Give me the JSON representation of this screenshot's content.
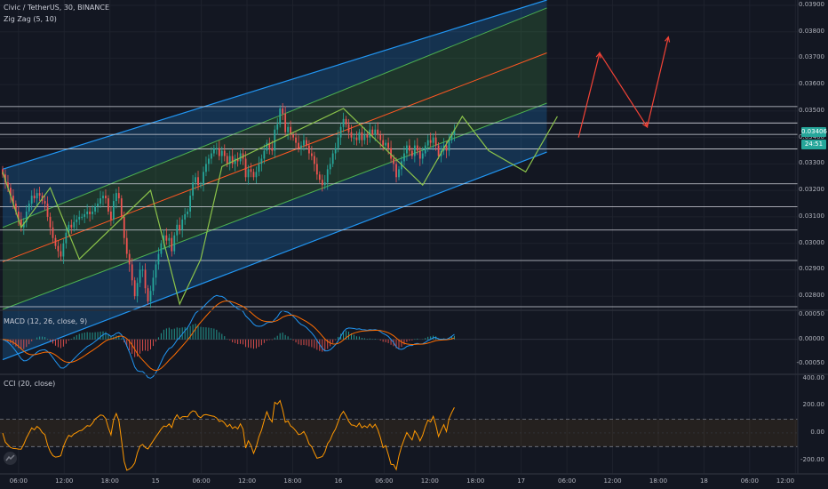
{
  "header": {
    "symbol_title": "Civic / TetherUS, 30, BINANCE",
    "indicator_1": "Zig Zag (5, 10)"
  },
  "panels": {
    "macd_label": "MACD (12, 26, close, 9)",
    "cci_label": "CCI (20, close)"
  },
  "price_axis": {
    "ticks": [
      "0.03900",
      "0.03800",
      "0.03700",
      "0.03600",
      "0.03500",
      "0.03400",
      "0.03300",
      "0.03200",
      "0.03100",
      "0.03000",
      "0.02900",
      "0.02800"
    ],
    "last_price": "0.03406",
    "countdown": "24:51",
    "last_price_color": "#26a69a",
    "countdown_color": "#ffffff"
  },
  "macd_axis": {
    "ticks": [
      "0.00050",
      "0.00000",
      "-0.00050"
    ]
  },
  "cci_axis": {
    "ticks": [
      "400.00",
      "200.00",
      "0.00",
      "-200.00"
    ]
  },
  "time_axis": {
    "ticks": [
      "06:00",
      "12:00",
      "18:00",
      "15",
      "06:00",
      "12:00",
      "18:00",
      "16",
      "06:00",
      "12:00",
      "18:00",
      "17",
      "06:00",
      "12:00",
      "18:00",
      "18",
      "06:00",
      "12:00"
    ]
  },
  "colors": {
    "background": "#131722",
    "up": "#26a69a",
    "down": "#ef5350",
    "channel_outer": "#2196f3",
    "channel_inner": "#4caf50",
    "channel_mid": "#ff5722",
    "zigzag": "#8bc34a",
    "forecast": "#f44336",
    "macd_line": "#2196f3",
    "signal_line": "#ff6d00",
    "cci_line": "#ff9800"
  },
  "icons": {
    "logo": "tradingview-logo-icon"
  },
  "chart_data": {
    "type": "candlestick",
    "ylim": [
      0.0275,
      0.0392
    ],
    "price_ticks": [
      0.039,
      0.038,
      0.037,
      0.036,
      0.035,
      0.034,
      0.033,
      0.032,
      0.031,
      0.03,
      0.029,
      0.028
    ],
    "horizontal_levels": [
      0.03517,
      0.03455,
      0.03412,
      0.03357,
      0.03225,
      0.03138,
      0.0305,
      0.02935,
      0.0276
    ],
    "channel": {
      "upper_outer": [
        [
          0,
          0.0328
        ],
        [
          206,
          0.0392
        ]
      ],
      "upper_inner": [
        [
          0,
          0.0306
        ],
        [
          206,
          0.0389
        ]
      ],
      "middle": [
        [
          0,
          0.0293
        ],
        [
          206,
          0.0372
        ]
      ],
      "lower_inner": [
        [
          0,
          0.0275
        ],
        [
          206,
          0.0353
        ]
      ],
      "lower_outer": [
        [
          0,
          0.0256
        ],
        [
          206,
          0.03345
        ]
      ]
    },
    "close": [
      0.0326,
      0.0323,
      0.0321,
      0.0318,
      0.0315,
      0.0312,
      0.0309,
      0.0306,
      0.0308,
      0.0312,
      0.0315,
      0.0318,
      0.0317,
      0.0319,
      0.0318,
      0.0316,
      0.0315,
      0.031,
      0.0306,
      0.0302,
      0.0299,
      0.0297,
      0.0295,
      0.03,
      0.0304,
      0.0307,
      0.0306,
      0.0308,
      0.0309,
      0.031,
      0.031,
      0.0311,
      0.0312,
      0.0311,
      0.0312,
      0.0314,
      0.0315,
      0.0317,
      0.0318,
      0.0317,
      0.0312,
      0.0309,
      0.0316,
      0.0319,
      0.0317,
      0.031,
      0.0302,
      0.0296,
      0.0292,
      0.0286,
      0.028,
      0.0285,
      0.029,
      0.029,
      0.0283,
      0.0278,
      0.0282,
      0.0287,
      0.0292,
      0.0296,
      0.03,
      0.0303,
      0.0301,
      0.0302,
      0.0297,
      0.0303,
      0.0307,
      0.0305,
      0.0309,
      0.0311,
      0.0312,
      0.0318,
      0.0323,
      0.0325,
      0.0322,
      0.0322,
      0.0327,
      0.033,
      0.0332,
      0.0334,
      0.0336,
      0.0336,
      0.0333,
      0.0335,
      0.0333,
      0.033,
      0.0333,
      0.033,
      0.0332,
      0.0331,
      0.0334,
      0.0332,
      0.0325,
      0.0328,
      0.0327,
      0.0325,
      0.0327,
      0.033,
      0.0332,
      0.0335,
      0.0338,
      0.0336,
      0.0335,
      0.0343,
      0.0345,
      0.0351,
      0.0349,
      0.0342,
      0.0344,
      0.0341,
      0.034,
      0.0338,
      0.0336,
      0.0337,
      0.0339,
      0.0337,
      0.0334,
      0.0333,
      0.033,
      0.0326,
      0.0324,
      0.0322,
      0.0323,
      0.0328,
      0.033,
      0.0334,
      0.0336,
      0.034,
      0.0344,
      0.0347,
      0.0345,
      0.0342,
      0.034,
      0.034,
      0.0339,
      0.0342,
      0.0339,
      0.0341,
      0.034,
      0.0343,
      0.0341,
      0.0343,
      0.0341,
      0.0339,
      0.0337,
      0.0338,
      0.0336,
      0.0332,
      0.033,
      0.0325,
      0.0328,
      0.0331,
      0.0334,
      0.0337,
      0.0335,
      0.0333,
      0.0337,
      0.0335,
      0.0332,
      0.0334,
      0.0337,
      0.0339,
      0.0338,
      0.034,
      0.0337,
      0.0333,
      0.0335,
      0.0337,
      0.0335,
      0.0339,
      0.0341,
      0.0343
    ],
    "zigzag_points": [
      [
        0,
        0.0327
      ],
      [
        7,
        0.0306
      ],
      [
        18,
        0.0321
      ],
      [
        29,
        0.0294
      ],
      [
        56,
        0.032
      ],
      [
        67,
        0.0277
      ],
      [
        75,
        0.0294
      ],
      [
        83,
        0.0329
      ],
      [
        129,
        0.0351
      ],
      [
        159,
        0.0322
      ],
      [
        174,
        0.0348
      ],
      [
        184,
        0.0335
      ],
      [
        198,
        0.0327
      ],
      [
        210,
        0.0348
      ]
    ],
    "forecast_path": [
      [
        218,
        0.034
      ],
      [
        226,
        0.0372
      ],
      [
        244,
        0.0344
      ],
      [
        252,
        0.0378
      ]
    ],
    "x_extent": 300,
    "macd": {
      "ylim": [
        -0.0007,
        0.0006
      ]
    },
    "cci": {
      "ylim": [
        -300,
        430
      ],
      "band": [
        -100,
        100
      ]
    }
  }
}
